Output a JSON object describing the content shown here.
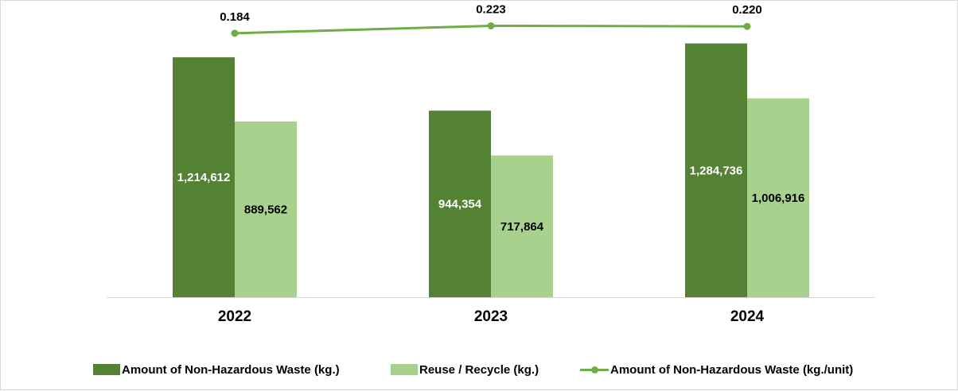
{
  "chart_data": {
    "type": "bar",
    "categories": [
      "2022",
      "2023",
      "2024"
    ],
    "series": [
      {
        "name": "Amount of Non-Hazardous Waste (kg.)",
        "kind": "bar",
        "color": "#548235",
        "label_color": "#ffffff",
        "values": [
          1214612,
          944354,
          1284736
        ],
        "labels": [
          "1,214,612",
          "944,354",
          "1,284,736"
        ]
      },
      {
        "name": "Reuse / Recycle (kg.)",
        "kind": "bar",
        "color": "#a9d18e",
        "label_color": "#000000",
        "values": [
          889562,
          717864,
          1006916
        ],
        "labels": [
          "889,562",
          "717,864",
          "1,006,916"
        ]
      },
      {
        "name": "Amount of Non-Hazardous Waste (kg./unit)",
        "kind": "line",
        "axis": "secondary",
        "color": "#70ad47",
        "values": [
          0.184,
          0.223,
          0.22
        ],
        "labels": [
          "0.184",
          "0.223",
          "0.220"
        ]
      }
    ],
    "ylim": [
      0,
      1400000
    ],
    "y2lim": [
      -1.2,
      0.25
    ],
    "legend": "bottom",
    "grid": false
  }
}
